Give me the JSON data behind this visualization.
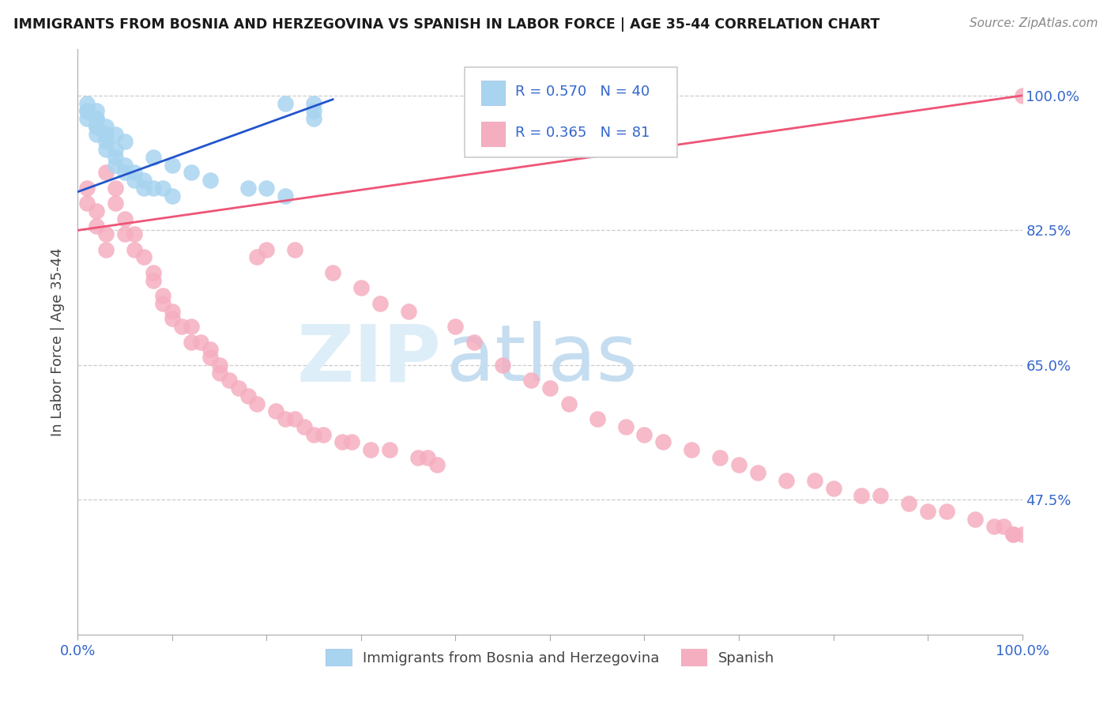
{
  "title": "IMMIGRANTS FROM BOSNIA AND HERZEGOVINA VS SPANISH IN LABOR FORCE | AGE 35-44 CORRELATION CHART",
  "source": "Source: ZipAtlas.com",
  "ylabel": "In Labor Force | Age 35-44",
  "y_tick_labels": [
    "100.0%",
    "82.5%",
    "65.0%",
    "47.5%"
  ],
  "y_tick_values": [
    1.0,
    0.825,
    0.65,
    0.475
  ],
  "xlim": [
    0.0,
    1.0
  ],
  "ylim": [
    0.3,
    1.06
  ],
  "blue_R": 0.57,
  "blue_N": 40,
  "pink_R": 0.365,
  "pink_N": 81,
  "blue_dot_color": "#a8d4f0",
  "pink_dot_color": "#f5aec0",
  "blue_line_color": "#2255cc",
  "pink_line_color": "#ee5577",
  "watermark_zip_color": "#c8ddf0",
  "watermark_atlas_color": "#b8cce4",
  "blue_points_x": [
    0.01,
    0.01,
    0.02,
    0.02,
    0.02,
    0.03,
    0.03,
    0.03,
    0.04,
    0.04,
    0.04,
    0.05,
    0.05,
    0.06,
    0.06,
    0.07,
    0.07,
    0.08,
    0.09,
    0.1,
    0.01,
    0.01,
    0.02,
    0.02,
    0.02,
    0.03,
    0.03,
    0.04,
    0.05,
    0.08,
    0.1,
    0.12,
    0.14,
    0.18,
    0.2,
    0.22,
    0.22,
    0.25,
    0.25,
    0.25
  ],
  "blue_points_y": [
    0.98,
    0.97,
    0.97,
    0.96,
    0.95,
    0.95,
    0.94,
    0.93,
    0.93,
    0.92,
    0.91,
    0.91,
    0.9,
    0.9,
    0.89,
    0.89,
    0.88,
    0.88,
    0.88,
    0.87,
    0.99,
    0.98,
    0.98,
    0.97,
    0.96,
    0.96,
    0.95,
    0.95,
    0.94,
    0.92,
    0.91,
    0.9,
    0.89,
    0.88,
    0.88,
    0.87,
    0.99,
    0.98,
    0.97,
    0.99
  ],
  "pink_points_x": [
    0.01,
    0.01,
    0.02,
    0.02,
    0.03,
    0.03,
    0.03,
    0.04,
    0.04,
    0.05,
    0.05,
    0.06,
    0.06,
    0.07,
    0.08,
    0.08,
    0.09,
    0.09,
    0.1,
    0.1,
    0.11,
    0.12,
    0.12,
    0.13,
    0.14,
    0.14,
    0.15,
    0.15,
    0.16,
    0.17,
    0.18,
    0.19,
    0.19,
    0.2,
    0.21,
    0.22,
    0.23,
    0.23,
    0.24,
    0.25,
    0.26,
    0.27,
    0.28,
    0.29,
    0.3,
    0.31,
    0.32,
    0.33,
    0.35,
    0.36,
    0.37,
    0.38,
    0.4,
    0.42,
    0.45,
    0.48,
    0.5,
    0.52,
    0.55,
    0.58,
    0.6,
    0.62,
    0.65,
    0.68,
    0.7,
    0.72,
    0.75,
    0.78,
    0.8,
    0.83,
    0.85,
    0.88,
    0.9,
    0.92,
    0.95,
    0.97,
    0.98,
    0.99,
    0.99,
    1.0,
    1.0
  ],
  "pink_points_y": [
    0.88,
    0.86,
    0.85,
    0.83,
    0.82,
    0.8,
    0.9,
    0.88,
    0.86,
    0.84,
    0.82,
    0.82,
    0.8,
    0.79,
    0.77,
    0.76,
    0.74,
    0.73,
    0.72,
    0.71,
    0.7,
    0.7,
    0.68,
    0.68,
    0.67,
    0.66,
    0.65,
    0.64,
    0.63,
    0.62,
    0.61,
    0.6,
    0.79,
    0.8,
    0.59,
    0.58,
    0.58,
    0.8,
    0.57,
    0.56,
    0.56,
    0.77,
    0.55,
    0.55,
    0.75,
    0.54,
    0.73,
    0.54,
    0.72,
    0.53,
    0.53,
    0.52,
    0.7,
    0.68,
    0.65,
    0.63,
    0.62,
    0.6,
    0.58,
    0.57,
    0.56,
    0.55,
    0.54,
    0.53,
    0.52,
    0.51,
    0.5,
    0.5,
    0.49,
    0.48,
    0.48,
    0.47,
    0.46,
    0.46,
    0.45,
    0.44,
    0.44,
    0.43,
    0.43,
    0.43,
    1.0
  ],
  "blue_trend_x": [
    0.0,
    0.27
  ],
  "blue_trend_y": [
    0.875,
    0.995
  ],
  "pink_trend_x": [
    0.0,
    1.0
  ],
  "pink_trend_y": [
    0.825,
    1.0
  ]
}
